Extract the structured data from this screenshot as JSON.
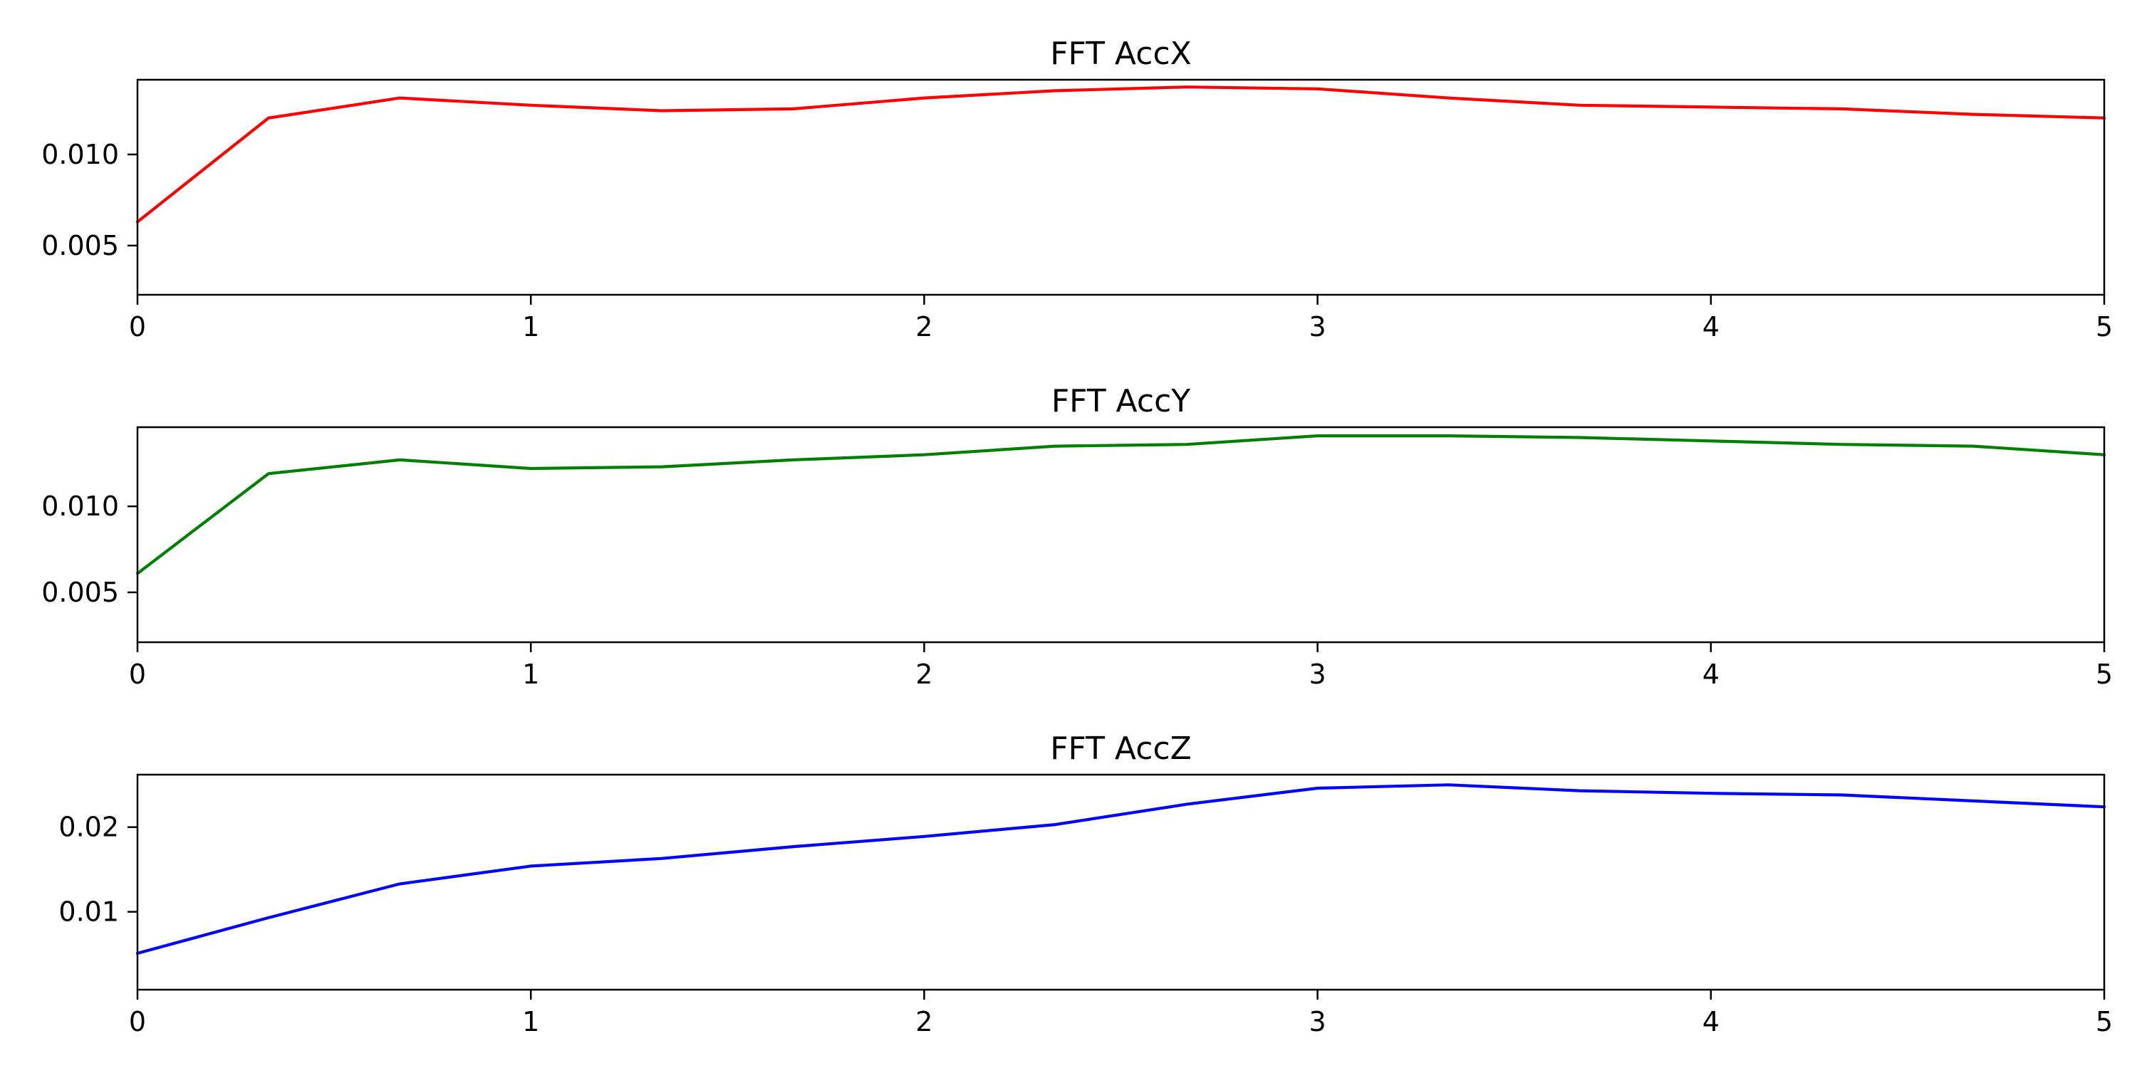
{
  "chart_data": [
    {
      "type": "line",
      "title": "FFT AccX",
      "xlabel": "",
      "ylabel": "",
      "xlim": [
        0,
        5
      ],
      "ylim": [
        0.0023,
        0.0141
      ],
      "xticks": [
        "0",
        "1",
        "2",
        "3",
        "4",
        "5"
      ],
      "yticks": [
        "0.005",
        "0.010"
      ],
      "grid": false,
      "series": [
        {
          "color": "#ff0000",
          "x": [
            0,
            0.3333,
            0.6667,
            1,
            1.3333,
            1.6667,
            2,
            2.3333,
            2.6667,
            3,
            3.3333,
            3.6667,
            4,
            4.3333,
            4.6667,
            5
          ],
          "y": [
            0.0063,
            0.012,
            0.0131,
            0.0127,
            0.0124,
            0.0125,
            0.0131,
            0.0135,
            0.0137,
            0.0136,
            0.0131,
            0.0127,
            0.0126,
            0.0125,
            0.0122,
            0.012
          ]
        }
      ]
    },
    {
      "type": "line",
      "title": "FFT AccY",
      "xlabel": "",
      "ylabel": "",
      "xlim": [
        0,
        5
      ],
      "ylim": [
        0.0021,
        0.0146
      ],
      "xticks": [
        "0",
        "1",
        "2",
        "3",
        "4",
        "5"
      ],
      "yticks": [
        "0.005",
        "0.010"
      ],
      "grid": false,
      "series": [
        {
          "color": "#008000",
          "x": [
            0,
            0.3333,
            0.6667,
            1,
            1.3333,
            1.6667,
            2,
            2.3333,
            2.6667,
            3,
            3.3333,
            3.6667,
            4,
            4.3333,
            4.6667,
            5
          ],
          "y": [
            0.0061,
            0.0119,
            0.0127,
            0.0122,
            0.0123,
            0.0127,
            0.013,
            0.0135,
            0.0136,
            0.0141,
            0.0141,
            0.014,
            0.0138,
            0.0136,
            0.0135,
            0.013
          ]
        }
      ]
    },
    {
      "type": "line",
      "title": "FFT AccZ",
      "xlabel": "",
      "ylabel": "",
      "xlim": [
        0,
        5
      ],
      "ylim": [
        0.0008,
        0.0262
      ],
      "xticks": [
        "0",
        "1",
        "2",
        "3",
        "4",
        "5"
      ],
      "yticks": [
        "0.01",
        "0.02"
      ],
      "grid": false,
      "series": [
        {
          "color": "#0000ff",
          "x": [
            0,
            0.3333,
            0.6667,
            1,
            1.3333,
            1.6667,
            2,
            2.3333,
            2.6667,
            3,
            3.3333,
            3.6667,
            4,
            4.3333,
            4.6667,
            5
          ],
          "y": [
            0.0051,
            0.0093,
            0.0133,
            0.0154,
            0.0163,
            0.0177,
            0.0189,
            0.0203,
            0.0227,
            0.0246,
            0.025,
            0.0243,
            0.024,
            0.0238,
            0.0231,
            0.0224
          ]
        }
      ]
    }
  ]
}
